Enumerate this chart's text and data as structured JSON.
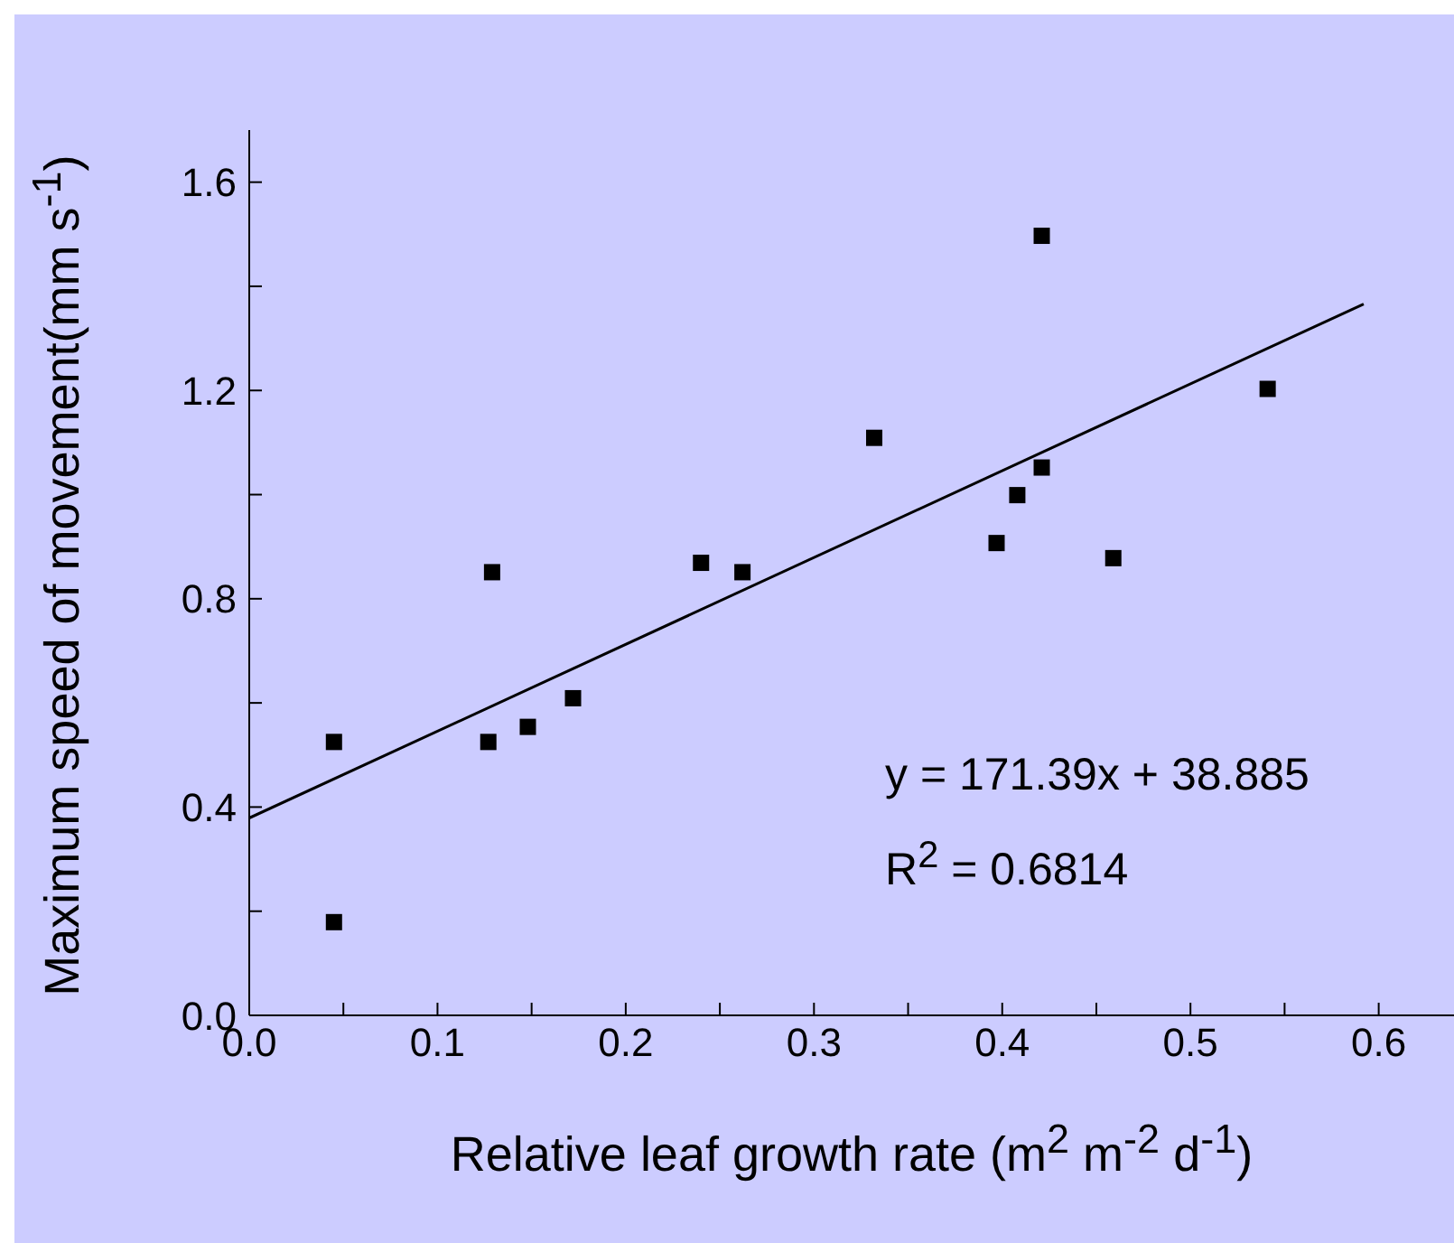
{
  "chart_data": {
    "type": "scatter",
    "xlabel": "Relative leaf growth rate (m$^{2}$ m$^{-2}$ d$^{-1}$)",
    "ylabel": "Maximum speed of movement(mm s$^{-1}$)",
    "annotations": [
      "y = 171.39x + 38.885",
      "R$^{2}$ = 0.6814"
    ],
    "marker": "square",
    "series": [
      {
        "color": "#000000",
        "x": [
          0.045,
          0.045,
          0.129,
          0.127,
          0.148,
          0.172,
          0.24,
          0.262,
          0.332,
          0.397,
          0.408,
          0.421,
          0.421,
          0.459,
          0.541
        ],
        "values": [
          0.525,
          0.179,
          0.851,
          0.525,
          0.554,
          0.609,
          0.869,
          0.851,
          1.109,
          0.907,
          0.999,
          1.052,
          1.497,
          0.878,
          1.203
        ]
      },
      {
        "type": "line",
        "color": "#000000",
        "marker": "none",
        "x": [
          0,
          0.592
        ],
        "values": [
          0.379,
          1.366
        ]
      }
    ],
    "xlim": [
      0,
      0.64
    ],
    "xticks": [
      {
        "value": 0,
        "label": "0.0"
      },
      {
        "value": 0.05,
        "label": null
      },
      0.1,
      {
        "value": 0.15,
        "label": null
      },
      0.2,
      {
        "value": 0.25,
        "label": null
      },
      0.3,
      {
        "value": 0.35,
        "label": null
      },
      0.4,
      {
        "value": 0.45,
        "label": null
      },
      0.5,
      {
        "value": 0.55,
        "label": null
      },
      0.6
    ],
    "ylim": [
      0,
      1.7
    ],
    "yticks": [
      {
        "value": 0,
        "label": "0.0"
      },
      {
        "value": 0.2,
        "label": null
      },
      0.4,
      {
        "value": 0.6,
        "label": null
      },
      0.8,
      {
        "value": 1.0,
        "label": null
      },
      1.2,
      {
        "value": 1.4,
        "label": null
      },
      1.6
    ]
  }
}
